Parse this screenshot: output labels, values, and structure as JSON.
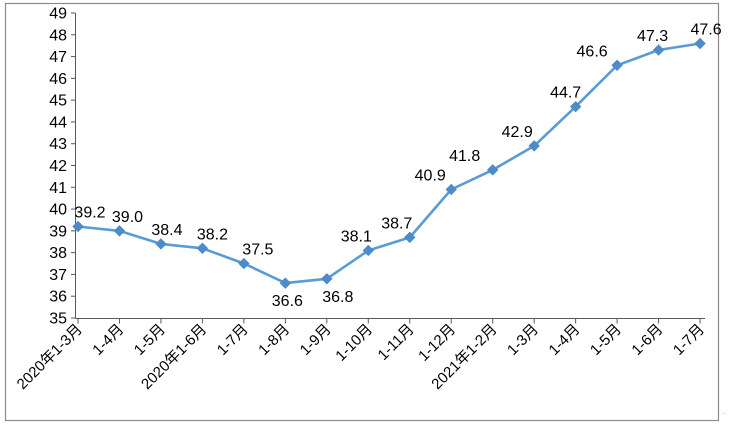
{
  "chart_data": {
    "type": "line",
    "title": "",
    "categories": [
      "2020年1-3月",
      "1-4月",
      "1-5月",
      "2020年1-6月",
      "1-7月",
      "1-8月",
      "1-9月",
      "1-10月",
      "1-11月",
      "1-12月",
      "2021年1-2月",
      "1-3月",
      "1-4月",
      "1-5月",
      "1-6月",
      "1-7月"
    ],
    "values": [
      39.2,
      39.0,
      38.4,
      38.2,
      37.5,
      36.6,
      36.8,
      38.1,
      38.7,
      40.9,
      41.8,
      42.9,
      44.7,
      46.6,
      47.3,
      47.6
    ],
    "data_labels": [
      "39.2",
      "39.0",
      "38.4",
      "38.2",
      "37.5",
      "36.6",
      "36.8",
      "38.1",
      "38.7",
      "40.9",
      "41.8",
      "42.9",
      "44.7",
      "46.6",
      "47.3",
      "47.6"
    ],
    "xlabel": "",
    "ylabel": "",
    "ylim": [
      35,
      49
    ],
    "ytick_step": 1,
    "yticks": [
      35,
      36,
      37,
      38,
      39,
      40,
      41,
      42,
      43,
      44,
      45,
      46,
      47,
      48,
      49
    ],
    "grid": false,
    "legend_position": "none",
    "marker": "diamond",
    "line_color": "#5B9BD5",
    "marker_color": "#4D8BC9",
    "axis_color": "#595959",
    "label_color": "#000000",
    "frame_color": "#8C8C8C",
    "background_color": "#FFFFFF",
    "label_below_indices": [
      5,
      6
    ],
    "label_dx": [
      12,
      8,
      6,
      10,
      14,
      2,
      11,
      -12,
      -13,
      -21,
      -28,
      -17,
      -10,
      -25,
      -6,
      6
    ],
    "x_labels_rotation_deg": -45
  },
  "artifact": {
    "glyph": "·"
  }
}
